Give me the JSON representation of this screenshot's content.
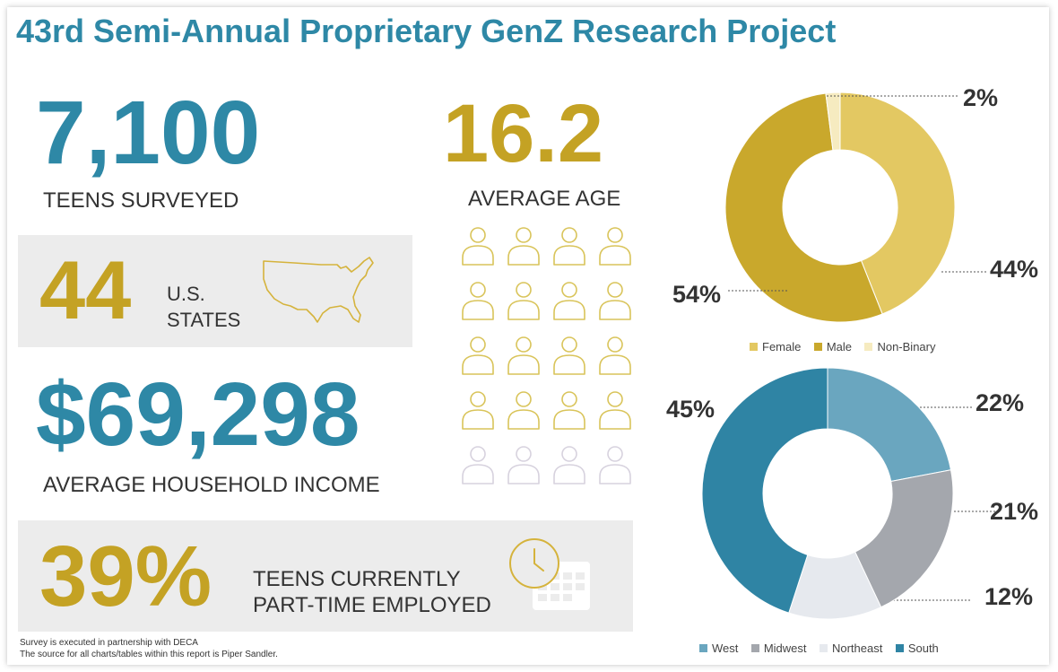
{
  "title": "43rd Semi-Annual Proprietary GenZ Research Project",
  "stats": {
    "teens_value": "7,100",
    "teens_label": "TEENS SURVEYED",
    "age_value": "16.2",
    "age_label": "AVERAGE AGE",
    "states_value": "44",
    "states_label_line1": "U.S.",
    "states_label_line2": "STATES",
    "income_value": "$69,298",
    "income_label": "AVERAGE HOUSEHOLD INCOME",
    "employed_value": "39%",
    "employed_label_line1": "TEENS CURRENTLY",
    "employed_label_line2": "PART-TIME EMPLOYED"
  },
  "footnote": {
    "line1": "Survey is executed in partnership with DECA",
    "line2": "The source for all charts/tables within this report is Piper Sandler."
  },
  "pictogram": {
    "rows": 5,
    "cols": 4,
    "filled_rows": 4,
    "filled_color": "#d9c45a",
    "empty_color": "#d7d2de"
  },
  "colors": {
    "accent_blue": "#2e88a6",
    "accent_gold": "#c4a224"
  },
  "chart_data": [
    {
      "type": "pie",
      "variant": "donut",
      "categories": [
        "Female",
        "Male",
        "Non-Binary"
      ],
      "values": [
        44,
        54,
        2
      ],
      "labels": [
        "44%",
        "54%",
        "2%"
      ],
      "colors": [
        "#e3c862",
        "#c9a82c",
        "#f6ebc0"
      ],
      "legend_position": "bottom"
    },
    {
      "type": "pie",
      "variant": "donut",
      "categories": [
        "West",
        "Midwest",
        "Northeast",
        "South"
      ],
      "values": [
        22,
        21,
        12,
        45
      ],
      "labels": [
        "22%",
        "21%",
        "12%",
        "45%"
      ],
      "colors": [
        "#6aa6bf",
        "#a4a7ad",
        "#e6e9ee",
        "#2f84a4"
      ],
      "legend_position": "bottom"
    }
  ]
}
